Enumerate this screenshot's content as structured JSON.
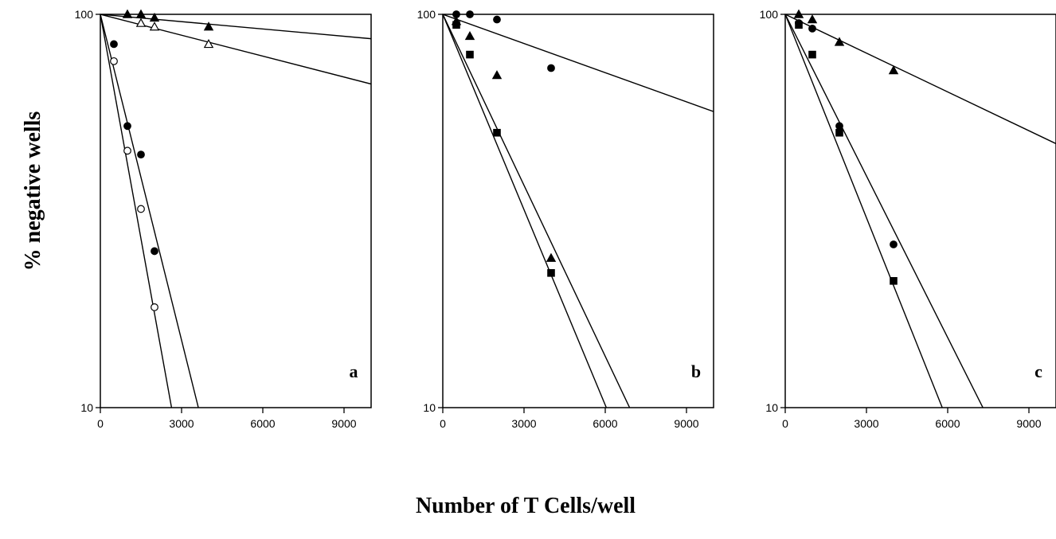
{
  "figure": {
    "ylabel": "% negative wells",
    "xlabel": "Number of T Cells/well"
  },
  "chart_data": [
    {
      "type": "scatter",
      "panel": "a",
      "yscale": "log",
      "xlim": [
        0,
        10000
      ],
      "ylim": [
        10,
        100
      ],
      "xticks": [
        "0",
        "3000",
        "6000",
        "9000"
      ],
      "yticks": [
        "10",
        "100"
      ],
      "series": [
        {
          "marker": "triangle-filled",
          "x": [
            1000,
            1500,
            2000,
            4000
          ],
          "y": [
            100,
            100,
            98,
            93
          ]
        },
        {
          "marker": "triangle-open",
          "x": [
            1500,
            2000,
            4000
          ],
          "y": [
            95,
            93,
            84
          ]
        },
        {
          "marker": "circle-filled",
          "x": [
            500,
            1000,
            1500,
            2000
          ],
          "y": [
            84,
            52,
            44,
            25
          ]
        },
        {
          "marker": "circle-open",
          "x": [
            500,
            1000,
            1500,
            2000
          ],
          "y": [
            76,
            45,
            32,
            18
          ]
        }
      ],
      "fit_lines": [
        {
          "x": [
            0,
            10000
          ],
          "y": [
            100,
            86.7
          ]
        },
        {
          "x": [
            0,
            10000
          ],
          "y": [
            100,
            66.5
          ]
        },
        {
          "x": [
            0,
            3620
          ],
          "y": [
            100,
            10
          ]
        },
        {
          "x": [
            0,
            2630
          ],
          "y": [
            100,
            10
          ]
        }
      ]
    },
    {
      "type": "scatter",
      "panel": "b",
      "yscale": "log",
      "xlim": [
        0,
        10000
      ],
      "ylim": [
        10,
        100
      ],
      "xticks": [
        "0",
        "3000",
        "6000",
        "9000"
      ],
      "yticks": [
        "10",
        "100"
      ],
      "series": [
        {
          "marker": "circle-filled",
          "x": [
            500,
            1000,
            2000,
            4000
          ],
          "y": [
            100,
            100,
            97,
            73
          ]
        },
        {
          "marker": "triangle-filled",
          "x": [
            500,
            1000,
            2000,
            4000
          ],
          "y": [
            96,
            88,
            70,
            24
          ]
        },
        {
          "marker": "square-filled",
          "x": [
            500,
            1000,
            2000,
            4000
          ],
          "y": [
            94,
            79,
            50,
            22
          ]
        }
      ],
      "fit_lines": [
        {
          "x": [
            0,
            10000
          ],
          "y": [
            100,
            56.6
          ]
        },
        {
          "x": [
            0,
            6900
          ],
          "y": [
            100,
            10
          ]
        },
        {
          "x": [
            0,
            6040
          ],
          "y": [
            100,
            10
          ]
        }
      ]
    },
    {
      "type": "scatter",
      "panel": "c",
      "yscale": "log",
      "xlim": [
        0,
        10000
      ],
      "ylim": [
        10,
        100
      ],
      "xticks": [
        "0",
        "3000",
        "6000",
        "9000"
      ],
      "yticks": [
        "10",
        "100"
      ],
      "series": [
        {
          "marker": "triangle-filled",
          "x": [
            500,
            1000,
            2000,
            4000
          ],
          "y": [
            100,
            97,
            85,
            72
          ]
        },
        {
          "marker": "circle-filled",
          "x": [
            500,
            1000,
            2000,
            4000
          ],
          "y": [
            95,
            92,
            52,
            26
          ]
        },
        {
          "marker": "square-filled",
          "x": [
            500,
            1000,
            2000,
            4000
          ],
          "y": [
            94,
            79,
            50,
            21
          ]
        }
      ],
      "fit_lines": [
        {
          "x": [
            0,
            10000
          ],
          "y": [
            100,
            46.9
          ]
        },
        {
          "x": [
            0,
            7300
          ],
          "y": [
            100,
            10
          ]
        },
        {
          "x": [
            0,
            5800
          ],
          "y": [
            100,
            10
          ]
        }
      ]
    }
  ]
}
